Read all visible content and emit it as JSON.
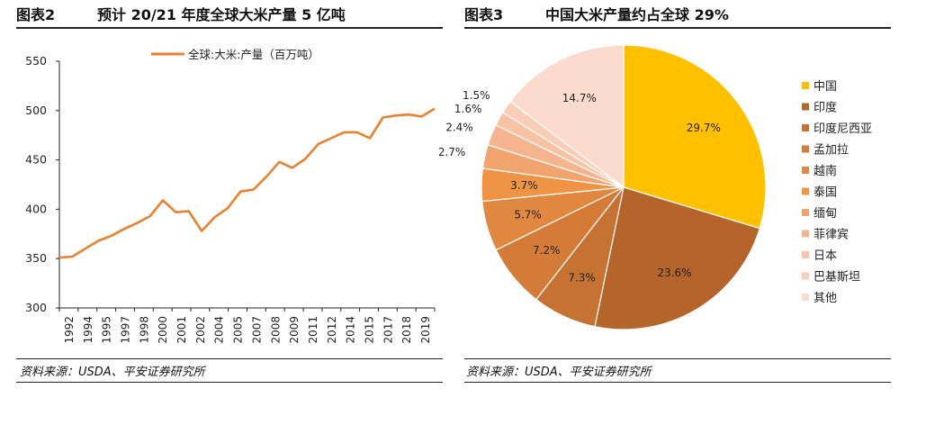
{
  "left": {
    "figure_number": "图表2",
    "figure_title": "预计 20/21 年度全球大米产量 5 亿吨",
    "source": "资料来源：USDA、平安证券研究所"
  },
  "right": {
    "figure_number": "图表3",
    "figure_title": "中国大米产量约占全球 29%",
    "source": "资料来源：USDA、平安证券研究所"
  },
  "chart_data": [
    {
      "type": "line",
      "title": "",
      "xlabel": "",
      "ylabel": "",
      "ylim": [
        300,
        550
      ],
      "yticks": [
        300,
        350,
        400,
        450,
        500,
        550
      ],
      "x_tick_labels": [
        "1992",
        "1994",
        "1995",
        "1997",
        "1998",
        "2000",
        "2001",
        "2002",
        "2004",
        "2005",
        "2007",
        "2008",
        "2009",
        "2011",
        "2012",
        "2014",
        "2015",
        "2017",
        "2018",
        "2019"
      ],
      "grid": false,
      "legend_position": "top",
      "series": [
        {
          "name": "全球:大米:产量（百万吨）",
          "color": "#E8822F",
          "points": [
            {
              "x": "1992",
              "y": 351
            },
            {
              "x": "1993",
              "y": 352
            },
            {
              "x": "1994",
              "y": 360
            },
            {
              "x": "1995",
              "y": 368
            },
            {
              "x": "1996",
              "y": 373
            },
            {
              "x": "1997",
              "y": 380
            },
            {
              "x": "1998",
              "y": 386
            },
            {
              "x": "1999",
              "y": 393
            },
            {
              "x": "2000",
              "y": 409
            },
            {
              "x": "2001",
              "y": 397
            },
            {
              "x": "2002",
              "y": 398
            },
            {
              "x": "2003",
              "y": 378
            },
            {
              "x": "2004",
              "y": 392
            },
            {
              "x": "2005",
              "y": 401
            },
            {
              "x": "2006",
              "y": 418
            },
            {
              "x": "2007",
              "y": 420
            },
            {
              "x": "2008",
              "y": 433
            },
            {
              "x": "2009",
              "y": 448
            },
            {
              "x": "2010",
              "y": 442
            },
            {
              "x": "2011",
              "y": 451
            },
            {
              "x": "2012",
              "y": 466
            },
            {
              "x": "2013",
              "y": 472
            },
            {
              "x": "2014",
              "y": 478
            },
            {
              "x": "2015",
              "y": 478
            },
            {
              "x": "2016",
              "y": 472
            },
            {
              "x": "2017",
              "y": 493
            },
            {
              "x": "2018",
              "y": 495
            },
            {
              "x": "2019",
              "y": 496
            },
            {
              "x": "2020",
              "y": 494
            },
            {
              "x": "2021",
              "y": 502
            }
          ]
        }
      ]
    },
    {
      "type": "pie",
      "title": "",
      "legend_position": "right",
      "slices": [
        {
          "label": "中国",
          "value": 29.7,
          "value_label": "29.7%",
          "color": "#FFC000"
        },
        {
          "label": "印度",
          "value": 23.6,
          "value_label": "23.6%",
          "color": "#B5652B"
        },
        {
          "label": "印度尼西亚",
          "value": 7.3,
          "value_label": "7.3%",
          "color": "#C67233"
        },
        {
          "label": "孟加拉",
          "value": 7.2,
          "value_label": "7.2%",
          "color": "#D47B38"
        },
        {
          "label": "越南",
          "value": 5.7,
          "value_label": "5.7%",
          "color": "#E08840"
        },
        {
          "label": "泰国",
          "value": 3.7,
          "value_label": "3.7%",
          "color": "#EF9344"
        },
        {
          "label": "缅甸",
          "value": 2.7,
          "value_label": "2.7%",
          "color": "#F2A46F"
        },
        {
          "label": "菲律宾",
          "value": 2.4,
          "value_label": "2.4%",
          "color": "#F5B48D"
        },
        {
          "label": "日本",
          "value": 1.6,
          "value_label": "1.6%",
          "color": "#F8C2A5"
        },
        {
          "label": "巴基斯坦",
          "value": 1.5,
          "value_label": "1.5%",
          "color": "#F9CDB6"
        },
        {
          "label": "其他",
          "value": 14.7,
          "value_label": "14.7%",
          "color": "#FBDBCD"
        }
      ]
    }
  ]
}
